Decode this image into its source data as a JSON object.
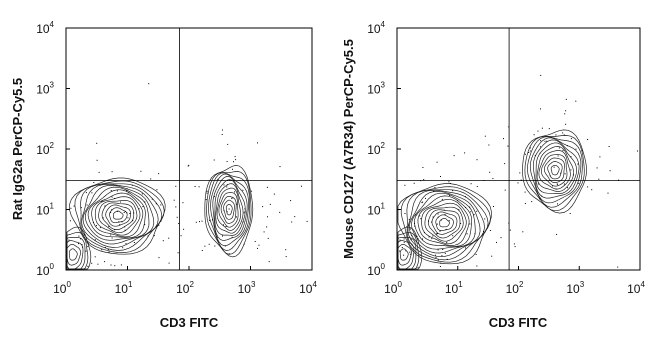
{
  "chart_data": [
    {
      "type": "contour",
      "xlabel": "CD3 FITC",
      "ylabel": "Rat IgG2a PerCP-Cy5.5",
      "x_scale": "log",
      "y_scale": "log",
      "xlim": [
        1,
        10000
      ],
      "ylim": [
        1,
        10000
      ],
      "x_ticks": [
        "10^0",
        "10^1",
        "10^2",
        "10^3",
        "10^4"
      ],
      "y_ticks": [
        "10^0",
        "10^1",
        "10^2",
        "10^3",
        "10^4"
      ],
      "quadrant_gate": {
        "x": 70,
        "y": 30
      },
      "populations": [
        {
          "x": 7,
          "y": 8
        },
        {
          "x": 1.3,
          "y": 1.8
        },
        {
          "x": 450,
          "y": 10
        }
      ],
      "grid": false
    },
    {
      "type": "contour",
      "xlabel": "CD3 FITC",
      "ylabel": "Mouse CD127 (A7R34) PerCP-Cy5.5",
      "x_scale": "log",
      "y_scale": "log",
      "xlim": [
        1,
        10000
      ],
      "ylim": [
        1,
        10000
      ],
      "x_ticks": [
        "10^0",
        "10^1",
        "10^2",
        "10^3",
        "10^4"
      ],
      "y_ticks": [
        "10^0",
        "10^1",
        "10^2",
        "10^3",
        "10^4"
      ],
      "quadrant_gate": {
        "x": 70,
        "y": 30
      },
      "populations": [
        {
          "x": 6,
          "y": 6
        },
        {
          "x": 1.3,
          "y": 1.8
        },
        {
          "x": 400,
          "y": 45
        }
      ],
      "grid": false
    }
  ],
  "icons": {
    "exponent_base": "10"
  }
}
